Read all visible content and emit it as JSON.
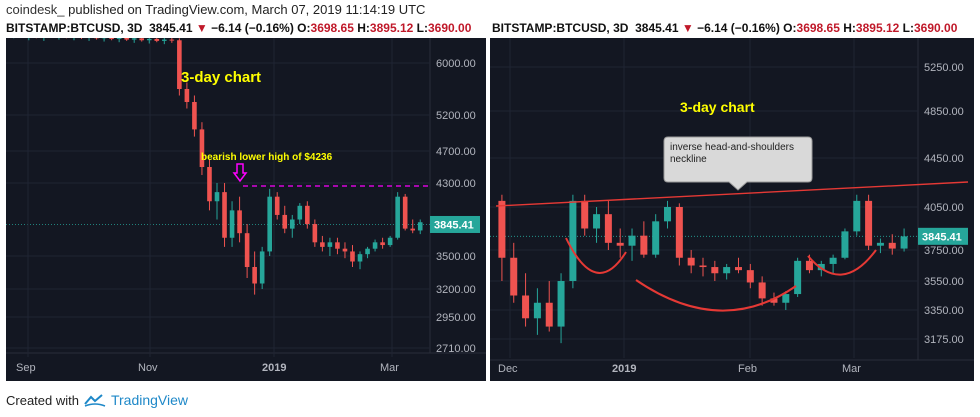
{
  "header": {
    "brand": "coindesk_",
    "published": "published on TradingView.com, March 07, 2019 11:14:19 UTC",
    "symbol": "BITSTAMP:BTCUSD, 3D",
    "last": "3845.41",
    "change_arrow": "▼",
    "change": "−6.14 (−0.16%)",
    "open_label": "O:",
    "open": "3698.65",
    "high_label": "H:",
    "high": "3895.12",
    "low_label": "L:",
    "low": "3690.00"
  },
  "footer": {
    "created_with": "Created with",
    "tradingview": "TradingView"
  },
  "colors": {
    "background": "#131722",
    "up": "#26a69a",
    "down": "#ef5350",
    "price_label": "#26a69a",
    "resistance": "#ff00ff",
    "trendline": "#e53935",
    "annotation": "#ffff00"
  },
  "chart_data": [
    {
      "type": "candlestick",
      "title": "3-day chart",
      "yticks": [
        "6000.00",
        "5200.00",
        "4700.00",
        "4300.00",
        "3845.41",
        "3500.00",
        "3200.00",
        "2950.00",
        "2710.00"
      ],
      "ytick_values": [
        6000,
        5200,
        4700,
        4300,
        3845.41,
        3500,
        3200,
        2950,
        2710
      ],
      "xticks": [
        "Sep",
        "Nov",
        "2019",
        "Mar"
      ],
      "last_price": 3845.41,
      "annotation": "bearish lower high of $4236",
      "resistance_level": 4236,
      "candles": [
        [
          6450,
          6520,
          6380,
          6470
        ],
        [
          6470,
          6550,
          6400,
          6420
        ],
        [
          6420,
          6480,
          6350,
          6440
        ],
        [
          6440,
          6500,
          6380,
          6400
        ],
        [
          6400,
          6460,
          6340,
          6450
        ],
        [
          6450,
          6520,
          6390,
          6410
        ],
        [
          6410,
          6470,
          6360,
          6430
        ],
        [
          6430,
          6490,
          6380,
          6400
        ],
        [
          6400,
          6440,
          6350,
          6420
        ],
        [
          6420,
          6480,
          6370,
          6390
        ],
        [
          6390,
          6450,
          6340,
          6410
        ],
        [
          6410,
          6460,
          6360,
          6380
        ],
        [
          6380,
          6430,
          6330,
          6400
        ],
        [
          6400,
          6450,
          6350,
          6370
        ],
        [
          6370,
          6420,
          6320,
          6390
        ],
        [
          6390,
          6440,
          6340,
          6360
        ],
        [
          6360,
          6420,
          6310,
          6380
        ],
        [
          6380,
          6430,
          6330,
          6350
        ],
        [
          6350,
          6400,
          6300,
          6370
        ],
        [
          6370,
          6420,
          6320,
          6340
        ],
        [
          6340,
          6390,
          6290,
          6360
        ],
        [
          6360,
          6410,
          6310,
          6350
        ],
        [
          6350,
          6380,
          5500,
          5600
        ],
        [
          5600,
          5700,
          5300,
          5400
        ],
        [
          5400,
          5500,
          4900,
          5000
        ],
        [
          5000,
          5100,
          4400,
          4500
        ],
        [
          4500,
          4600,
          4000,
          4100
        ],
        [
          4100,
          4300,
          3900,
          4200
        ],
        [
          4200,
          4300,
          3600,
          3700
        ],
        [
          3700,
          4100,
          3600,
          4000
        ],
        [
          4000,
          4150,
          3650,
          3750
        ],
        [
          3750,
          3850,
          3300,
          3400
        ],
        [
          3400,
          3550,
          3150,
          3250
        ],
        [
          3250,
          3600,
          3200,
          3550
        ],
        [
          3550,
          4236,
          3500,
          4150
        ],
        [
          4150,
          4200,
          3900,
          3950
        ],
        [
          3950,
          4050,
          3750,
          3800
        ],
        [
          3800,
          3950,
          3700,
          3900
        ],
        [
          3900,
          4080,
          3850,
          4050
        ],
        [
          4050,
          4100,
          3800,
          3850
        ],
        [
          3850,
          3900,
          3600,
          3650
        ],
        [
          3650,
          3720,
          3550,
          3600
        ],
        [
          3600,
          3700,
          3500,
          3650
        ],
        [
          3650,
          3700,
          3520,
          3580
        ],
        [
          3580,
          3650,
          3480,
          3550
        ],
        [
          3550,
          3620,
          3400,
          3450
        ],
        [
          3450,
          3550,
          3380,
          3520
        ],
        [
          3520,
          3600,
          3480,
          3580
        ],
        [
          3580,
          3680,
          3550,
          3650
        ],
        [
          3650,
          3700,
          3580,
          3620
        ],
        [
          3620,
          3720,
          3600,
          3700
        ],
        [
          3700,
          4200,
          3680,
          4150
        ],
        [
          4150,
          4180,
          3780,
          3800
        ],
        [
          3800,
          3900,
          3750,
          3780
        ],
        [
          3780,
          3900,
          3740,
          3870
        ]
      ]
    },
    {
      "type": "candlestick",
      "title": "3-day chart",
      "yticks": [
        "5250.00",
        "4850.00",
        "4450.00",
        "4050.00",
        "3845.41",
        "3750.00",
        "3550.00",
        "3350.00",
        "3175.00"
      ],
      "ytick_values": [
        5250,
        4850,
        4450,
        4050,
        3845.41,
        3750,
        3550,
        3350,
        3175
      ],
      "xticks": [
        "Dec",
        "2019",
        "Feb",
        "Mar"
      ],
      "last_price": 3845.41,
      "callout": "inverse head-and-shoulders neckline",
      "candles": [
        [
          4100,
          4150,
          3550,
          3700
        ],
        [
          3700,
          3800,
          3400,
          3450
        ],
        [
          3450,
          3600,
          3250,
          3300
        ],
        [
          3300,
          3500,
          3200,
          3400
        ],
        [
          3400,
          3550,
          3220,
          3250
        ],
        [
          3250,
          3600,
          3150,
          3550
        ],
        [
          3550,
          4150,
          3500,
          4100
        ],
        [
          4100,
          4150,
          3850,
          3900
        ],
        [
          3900,
          4050,
          3800,
          4000
        ],
        [
          4000,
          4100,
          3750,
          3800
        ],
        [
          3800,
          3900,
          3700,
          3780
        ],
        [
          3780,
          3900,
          3680,
          3850
        ],
        [
          3850,
          3950,
          3700,
          3720
        ],
        [
          3720,
          4000,
          3700,
          3950
        ],
        [
          3950,
          4100,
          3900,
          4050
        ],
        [
          4050,
          4080,
          3650,
          3700
        ],
        [
          3700,
          3750,
          3600,
          3650
        ],
        [
          3650,
          3700,
          3580,
          3640
        ],
        [
          3640,
          3680,
          3550,
          3600
        ],
        [
          3600,
          3660,
          3560,
          3640
        ],
        [
          3640,
          3700,
          3600,
          3620
        ],
        [
          3620,
          3660,
          3500,
          3540
        ],
        [
          3540,
          3580,
          3380,
          3430
        ],
        [
          3430,
          3470,
          3380,
          3400
        ],
        [
          3400,
          3480,
          3350,
          3460
        ],
        [
          3460,
          3700,
          3440,
          3680
        ],
        [
          3680,
          3720,
          3600,
          3620
        ],
        [
          3620,
          3680,
          3580,
          3660
        ],
        [
          3660,
          3720,
          3600,
          3700
        ],
        [
          3700,
          3900,
          3690,
          3880
        ],
        [
          3880,
          4150,
          3850,
          4100
        ],
        [
          4100,
          4150,
          3750,
          3780
        ],
        [
          3780,
          3830,
          3730,
          3800
        ],
        [
          3800,
          3860,
          3720,
          3760
        ],
        [
          3760,
          3900,
          3740,
          3845
        ]
      ]
    }
  ]
}
